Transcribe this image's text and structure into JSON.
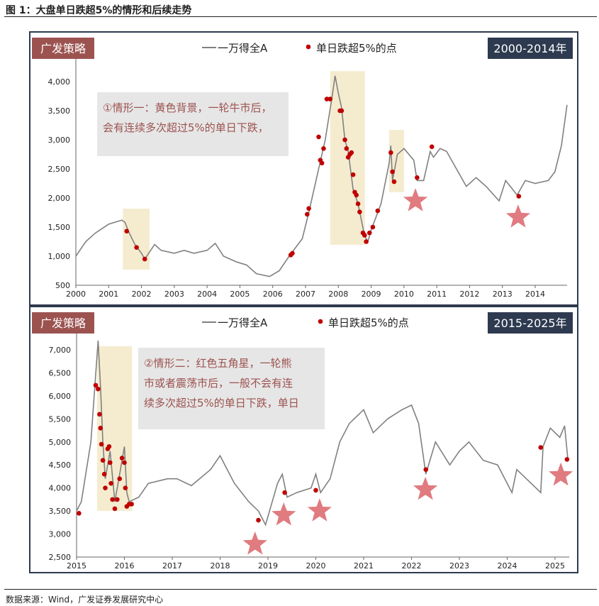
{
  "title": "图 1：大盘单日跌超5%的情形和后续走势",
  "source": "数据来源：Wind，广发证券发展研究中心",
  "colors": {
    "line": "#808080",
    "dot": "#c00000",
    "star": "#e07b80",
    "highlight": "#f5ecd0",
    "brand": "#9c5350",
    "period": "#2d3a4f",
    "note_bg": "#e6e6e6",
    "note_text": "#9c5350"
  },
  "chart_data": [
    {
      "type": "line",
      "brand": "广发策略",
      "period": "2000-2014年",
      "legend": {
        "line": "一万得全A",
        "dots": "单日跌超5%的点"
      },
      "note": [
        "①情形一：黄色背景，一轮牛市后，",
        "会有连续多次超过5%的单日下跌，"
      ],
      "xlim": [
        2000,
        2014.97
      ],
      "ylim": [
        500,
        4200
      ],
      "xticks": [
        2000,
        2001,
        2002,
        2003,
        2004,
        2005,
        2006,
        2007,
        2008,
        2009,
        2010,
        2011,
        2012,
        2013,
        2014
      ],
      "yticks": [
        500,
        1000,
        1500,
        2000,
        2500,
        3000,
        3500,
        4000
      ],
      "series": [
        [
          2000,
          1000
        ],
        [
          2000.3,
          1250
        ],
        [
          2000.6,
          1400
        ],
        [
          2001,
          1550
        ],
        [
          2001.4,
          1620
        ],
        [
          2001.5,
          1580
        ],
        [
          2001.6,
          1430
        ],
        [
          2001.8,
          1200
        ],
        [
          2002,
          1050
        ],
        [
          2002.1,
          950
        ],
        [
          2002.4,
          1200
        ],
        [
          2002.6,
          1100
        ],
        [
          2003,
          1050
        ],
        [
          2003.3,
          1100
        ],
        [
          2003.6,
          1050
        ],
        [
          2004,
          1100
        ],
        [
          2004.25,
          1220
        ],
        [
          2004.5,
          1000
        ],
        [
          2004.9,
          900
        ],
        [
          2005.2,
          850
        ],
        [
          2005.5,
          700
        ],
        [
          2005.9,
          650
        ],
        [
          2006.2,
          750
        ],
        [
          2006.5,
          1000
        ],
        [
          2006.9,
          1300
        ],
        [
          2007.1,
          1750
        ],
        [
          2007.4,
          2500
        ],
        [
          2007.6,
          3000
        ],
        [
          2007.8,
          3700
        ],
        [
          2007.9,
          4100
        ],
        [
          2008,
          3800
        ],
        [
          2008.1,
          3550
        ],
        [
          2008.2,
          3000
        ],
        [
          2008.3,
          2800
        ],
        [
          2008.45,
          2150
        ],
        [
          2008.6,
          1900
        ],
        [
          2008.8,
          1350
        ],
        [
          2008.9,
          1250
        ],
        [
          2009,
          1450
        ],
        [
          2009.3,
          1900
        ],
        [
          2009.55,
          2600
        ],
        [
          2009.6,
          2900
        ],
        [
          2009.65,
          2300
        ],
        [
          2009.8,
          2750
        ],
        [
          2010,
          2850
        ],
        [
          2010.3,
          2650
        ],
        [
          2010.4,
          2300
        ],
        [
          2010.6,
          2300
        ],
        [
          2010.8,
          2800
        ],
        [
          2010.9,
          2700
        ],
        [
          2011.1,
          2850
        ],
        [
          2011.3,
          2800
        ],
        [
          2011.6,
          2500
        ],
        [
          2011.9,
          2200
        ],
        [
          2012.2,
          2350
        ],
        [
          2012.5,
          2200
        ],
        [
          2012.9,
          1950
        ],
        [
          2013.1,
          2300
        ],
        [
          2013.45,
          2050
        ],
        [
          2013.7,
          2300
        ],
        [
          2014,
          2250
        ],
        [
          2014.4,
          2300
        ],
        [
          2014.6,
          2450
        ],
        [
          2014.8,
          2900
        ],
        [
          2014.97,
          3600
        ]
      ],
      "drops": [
        [
          2001.55,
          1430
        ],
        [
          2001.85,
          1150
        ],
        [
          2002.1,
          950
        ],
        [
          2006.55,
          1020
        ],
        [
          2006.6,
          1050
        ],
        [
          2007.05,
          1720
        ],
        [
          2007.1,
          1820
        ],
        [
          2007.4,
          3050
        ],
        [
          2007.45,
          2650
        ],
        [
          2007.5,
          2600
        ],
        [
          2007.55,
          2850
        ],
        [
          2007.65,
          3700
        ],
        [
          2007.75,
          3700
        ],
        [
          2008.05,
          3500
        ],
        [
          2008.1,
          3500
        ],
        [
          2008.2,
          3000
        ],
        [
          2008.25,
          2850
        ],
        [
          2008.3,
          2700
        ],
        [
          2008.35,
          2750
        ],
        [
          2008.4,
          2780
        ],
        [
          2008.45,
          2400
        ],
        [
          2008.5,
          2100
        ],
        [
          2008.55,
          2050
        ],
        [
          2008.6,
          1900
        ],
        [
          2008.65,
          1760
        ],
        [
          2008.75,
          1400
        ],
        [
          2008.8,
          1360
        ],
        [
          2008.85,
          1250
        ],
        [
          2008.95,
          1400
        ],
        [
          2009.05,
          1500
        ],
        [
          2009.2,
          1780
        ],
        [
          2009.6,
          2780
        ],
        [
          2009.65,
          2450
        ],
        [
          2009.7,
          2280
        ],
        [
          2010.4,
          2350
        ],
        [
          2010.85,
          2880
        ],
        [
          2013.5,
          2030
        ]
      ],
      "highlights": [
        [
          2001.43,
          2002.25,
          768,
          1817
        ],
        [
          2007.75,
          2008.81,
          1195,
          4180
        ],
        [
          2009.55,
          2010.0,
          2100,
          3170
        ]
      ],
      "stars": [
        [
          2010.35,
          1950
        ],
        [
          2013.48,
          1670
        ]
      ]
    },
    {
      "type": "line",
      "brand": "广发策略",
      "period": "2015-2025年",
      "legend": {
        "line": "一万得全A",
        "dots": "单日跌超5%的点"
      },
      "note": [
        "②情形二：红色五角星，一轮熊",
        "市或者震荡市后，一般不会有连",
        "续多次超过5%的单日下跌，单日"
      ],
      "xlim": [
        2015,
        2025.3
      ],
      "ylim": [
        2500,
        7300
      ],
      "xticks": [
        2015,
        2016,
        2017,
        2018,
        2019,
        2020,
        2021,
        2022,
        2023,
        2024,
        2025
      ],
      "yticks": [
        2500,
        3000,
        3500,
        4000,
        4500,
        5000,
        5500,
        6000,
        6500,
        7000
      ],
      "series": [
        [
          2015,
          3500
        ],
        [
          2015.1,
          3700
        ],
        [
          2015.3,
          5000
        ],
        [
          2015.45,
          7200
        ],
        [
          2015.5,
          6200
        ],
        [
          2015.55,
          5000
        ],
        [
          2015.6,
          4200
        ],
        [
          2015.7,
          4800
        ],
        [
          2015.8,
          3700
        ],
        [
          2015.9,
          4300
        ],
        [
          2016,
          4900
        ],
        [
          2016.05,
          3900
        ],
        [
          2016.1,
          3700
        ],
        [
          2016.3,
          3800
        ],
        [
          2016.5,
          4100
        ],
        [
          2016.9,
          4200
        ],
        [
          2017.1,
          4200
        ],
        [
          2017.4,
          4050
        ],
        [
          2017.8,
          4400
        ],
        [
          2018,
          4700
        ],
        [
          2018.1,
          4500
        ],
        [
          2018.3,
          4100
        ],
        [
          2018.6,
          3700
        ],
        [
          2018.8,
          3500
        ],
        [
          2018.95,
          3200
        ],
        [
          2019.2,
          4100
        ],
        [
          2019.3,
          4300
        ],
        [
          2019.4,
          3800
        ],
        [
          2019.6,
          3900
        ],
        [
          2019.9,
          4000
        ],
        [
          2020,
          4300
        ],
        [
          2020.1,
          3900
        ],
        [
          2020.3,
          4200
        ],
        [
          2020.5,
          5000
        ],
        [
          2020.7,
          5400
        ],
        [
          2021,
          5700
        ],
        [
          2021.2,
          5200
        ],
        [
          2021.5,
          5500
        ],
        [
          2021.8,
          5700
        ],
        [
          2022,
          5800
        ],
        [
          2022.15,
          5400
        ],
        [
          2022.3,
          4300
        ],
        [
          2022.5,
          5000
        ],
        [
          2022.8,
          4500
        ],
        [
          2023,
          4800
        ],
        [
          2023.2,
          5000
        ],
        [
          2023.5,
          4600
        ],
        [
          2023.8,
          4500
        ],
        [
          2024.1,
          3900
        ],
        [
          2024.2,
          4400
        ],
        [
          2024.5,
          4100
        ],
        [
          2024.7,
          3900
        ],
        [
          2024.75,
          4900
        ],
        [
          2024.9,
          5300
        ],
        [
          2025.1,
          5100
        ],
        [
          2025.2,
          5350
        ],
        [
          2025.27,
          4600
        ]
      ],
      "drops": [
        [
          2015.05,
          3450
        ],
        [
          2015.4,
          6230
        ],
        [
          2015.45,
          6150
        ],
        [
          2015.48,
          5600
        ],
        [
          2015.5,
          5300
        ],
        [
          2015.52,
          4950
        ],
        [
          2015.55,
          4600
        ],
        [
          2015.58,
          4300
        ],
        [
          2015.6,
          4000
        ],
        [
          2015.65,
          4850
        ],
        [
          2015.68,
          4900
        ],
        [
          2015.7,
          4550
        ],
        [
          2015.72,
          4100
        ],
        [
          2015.75,
          3750
        ],
        [
          2015.8,
          3550
        ],
        [
          2015.85,
          3750
        ],
        [
          2015.9,
          4200
        ],
        [
          2015.95,
          4650
        ],
        [
          2016,
          4550
        ],
        [
          2016.02,
          4000
        ],
        [
          2016.05,
          3600
        ],
        [
          2016.1,
          3650
        ],
        [
          2016.15,
          3650
        ],
        [
          2018.8,
          3300
        ],
        [
          2019.35,
          3900
        ],
        [
          2020,
          3950
        ],
        [
          2022.3,
          4400
        ],
        [
          2024.7,
          4880
        ],
        [
          2025.25,
          4620
        ]
      ],
      "highlights": [
        [
          2015.43,
          2016.16,
          3500,
          7080
        ]
      ],
      "stars": [
        [
          2018.73,
          2778
        ],
        [
          2019.33,
          3410
        ],
        [
          2020.08,
          3500
        ],
        [
          2022.29,
          3966
        ],
        [
          2025.12,
          4275
        ]
      ]
    }
  ]
}
